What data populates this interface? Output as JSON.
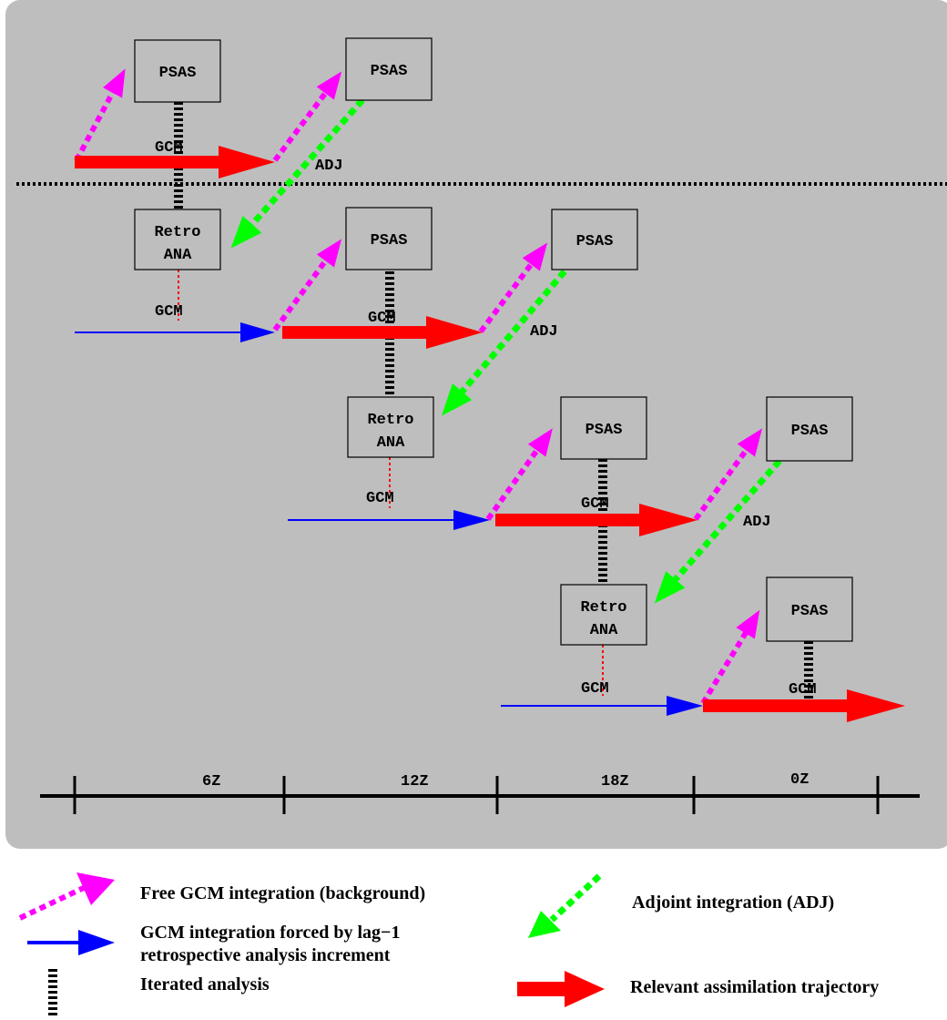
{
  "diagram": {
    "boxes": {
      "psas": "PSAS",
      "retro_line1": "Retro",
      "retro_line2": "ANA"
    },
    "labels": {
      "gcm": "GCM",
      "adj": "ADJ"
    },
    "timeline": {
      "ticks": [
        "6Z",
        "12Z",
        "18Z",
        "0Z"
      ]
    }
  },
  "legend": {
    "free_gcm": "Free GCM integration (background)",
    "forced_gcm_line1": "GCM integration forced by lag−1",
    "forced_gcm_line2": "retrospective analysis increment",
    "iterated": "Iterated analysis",
    "adjoint": "Adjoint integration (ADJ)",
    "relevant": "Relevant assimilation trajectory"
  },
  "colors": {
    "panel": "#bebebe",
    "free_gcm": "#ff00ff",
    "forced_gcm": "#0000ff",
    "adjoint": "#00ff00",
    "relevant": "#ff0000",
    "iterated": "#000000"
  }
}
